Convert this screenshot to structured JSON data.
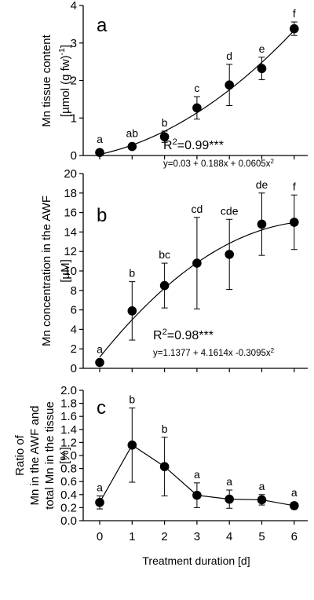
{
  "chart_data": [
    {
      "type": "scatter",
      "panel_label": "a",
      "ylabel_lines": [
        "Mn tissue content",
        "[µmol (g fw)-1]"
      ],
      "ylim": [
        0,
        4
      ],
      "yticks": [
        "0",
        "1",
        "2",
        "3",
        "4"
      ],
      "fit": "quadratic",
      "fit_coefficients": [
        0.03,
        0.188,
        0.0605
      ],
      "r2_text": "R²=0.99***",
      "equation_text": "y=0.03 + 0.188x + 0.0605x²",
      "points": [
        {
          "x": 0,
          "y": 0.08,
          "err": 0.05,
          "sig": "a"
        },
        {
          "x": 1,
          "y": 0.24,
          "err": 0.05,
          "sig": "ab"
        },
        {
          "x": 2,
          "y": 0.5,
          "err": 0.15,
          "sig": "b"
        },
        {
          "x": 3,
          "y": 1.27,
          "err": 0.3,
          "sig": "c"
        },
        {
          "x": 4,
          "y": 1.88,
          "err": 0.55,
          "sig": "d"
        },
        {
          "x": 5,
          "y": 2.32,
          "err": 0.3,
          "sig": "e"
        },
        {
          "x": 6,
          "y": 3.38,
          "err": 0.18,
          "sig": "f"
        }
      ]
    },
    {
      "type": "scatter",
      "panel_label": "b",
      "ylabel_lines": [
        "Mn concentration in the AWF",
        "[µM]"
      ],
      "ylim": [
        0,
        20
      ],
      "yticks": [
        "0",
        "2",
        "4",
        "6",
        "8",
        "10",
        "12",
        "14",
        "16",
        "18",
        "20"
      ],
      "fit": "quadratic",
      "fit_coefficients": [
        1.1377,
        4.1614,
        -0.3095
      ],
      "r2_text": "R²=0.98***",
      "equation_text": "y=1.1377 + 4.1614x -0.3095x²",
      "points": [
        {
          "x": 0,
          "y": 0.6,
          "err": 0.2,
          "sig": "a"
        },
        {
          "x": 1,
          "y": 5.9,
          "err": 3.0,
          "sig": "b"
        },
        {
          "x": 2,
          "y": 8.5,
          "err": 2.3,
          "sig": "bc"
        },
        {
          "x": 3,
          "y": 10.8,
          "err": 4.7,
          "sig": "cd"
        },
        {
          "x": 4,
          "y": 11.7,
          "err": 3.6,
          "sig": "cde"
        },
        {
          "x": 5,
          "y": 14.8,
          "err": 3.2,
          "sig": "de"
        },
        {
          "x": 6,
          "y": 15.0,
          "err": 2.8,
          "sig": "f"
        }
      ]
    },
    {
      "type": "line",
      "panel_label": "c",
      "ylabel_lines": [
        "Ratio of",
        "Mn in the AWF and",
        "total Mn in the tissue",
        "[%]"
      ],
      "ylim": [
        0,
        2
      ],
      "yticks": [
        "0.0",
        "0.2",
        "0.4",
        "0.6",
        "0.8",
        "1.0",
        "1.2",
        "1.4",
        "1.6",
        "1.8",
        "2.0"
      ],
      "xticks": [
        "0",
        "1",
        "2",
        "3",
        "4",
        "5",
        "6"
      ],
      "xlabel": "Treatment duration [d]",
      "points": [
        {
          "x": 0,
          "y": 0.28,
          "err": 0.1,
          "sig": "a"
        },
        {
          "x": 1,
          "y": 1.16,
          "err": 0.57,
          "sig": "b"
        },
        {
          "x": 2,
          "y": 0.83,
          "err": 0.45,
          "sig": "b"
        },
        {
          "x": 3,
          "y": 0.39,
          "err": 0.19,
          "sig": "a"
        },
        {
          "x": 4,
          "y": 0.33,
          "err": 0.14,
          "sig": "a"
        },
        {
          "x": 5,
          "y": 0.32,
          "err": 0.08,
          "sig": "a"
        },
        {
          "x": 6,
          "y": 0.23,
          "err": 0.05,
          "sig": "a"
        }
      ]
    }
  ]
}
